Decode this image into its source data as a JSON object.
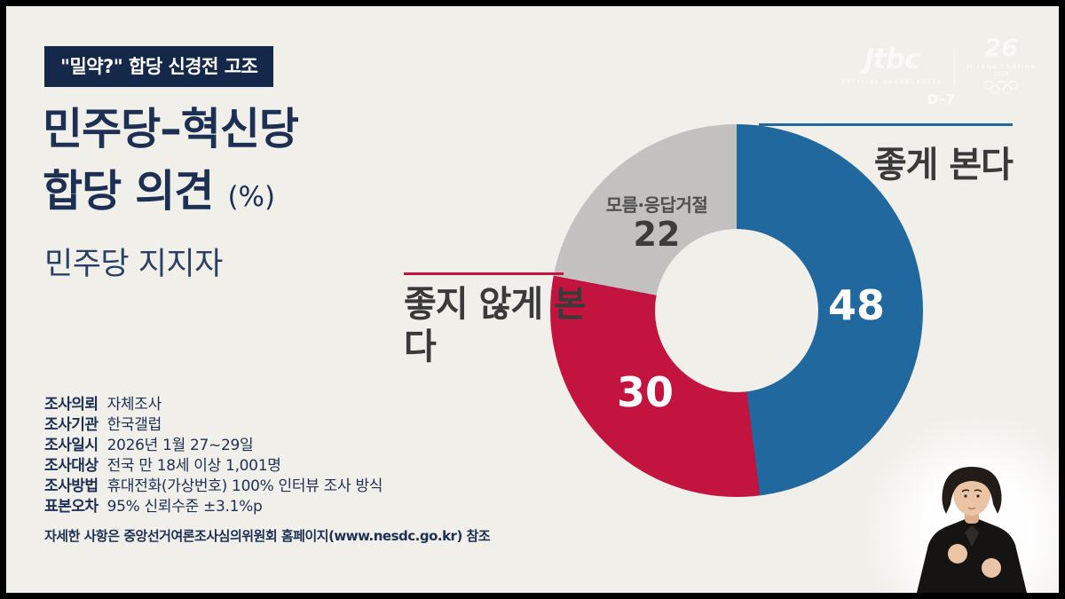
{
  "badge": {
    "label": "\"밀약?\" 합당 신경전 고조"
  },
  "title": {
    "line1": "민주당–혁신당",
    "line2": "합당 의견",
    "unit": "(%)"
  },
  "subtitle": "민주당 지지자",
  "chart_data": {
    "type": "pie",
    "donut": true,
    "title": "민주당–혁신당 합당 의견 (%)",
    "subtitle": "민주당 지지자",
    "unit": "%",
    "start_angle": "top",
    "direction": "clockwise",
    "legend_position": "direct-labels",
    "segments": [
      {
        "label": "좋게 본다",
        "value": 48,
        "color": "#20689e"
      },
      {
        "label": "좋지 않게 본다",
        "value": 30,
        "color": "#c31440"
      },
      {
        "label": "모름·응답거절",
        "value": 22,
        "color": "#c2c1bf"
      }
    ]
  },
  "survey": {
    "rows": [
      {
        "label": "조사의뢰",
        "value": "자체조사"
      },
      {
        "label": "조사기관",
        "value": "한국갤럽"
      },
      {
        "label": "조사일시",
        "value": "2026년 1월 27~29일"
      },
      {
        "label": "조사대상",
        "value": "전국 만 18세 이상 1,001명"
      },
      {
        "label": "조사방법",
        "value": "휴대전화(가상번호) 100% 인터뷰 조사 방식"
      },
      {
        "label": "표본오차",
        "value": "95% 신뢰수준 ±3.1%p"
      }
    ],
    "note": "자세한 사항은 중앙선거여론조사심의위원회 홈페이지(www.nesdc.go.kr) 참조"
  },
  "brand": {
    "network": "Jtbc",
    "tagline": "OFFICIAL BROADCASTER",
    "emblem": "26",
    "event": "MILANO CORTINA",
    "event_year": "2026",
    "countdown": "D-7"
  },
  "colors": {
    "bg": "#f1efe9",
    "navy": "#1d3054",
    "badge": "#16284a",
    "blue": "#20689e",
    "red": "#c31440",
    "gray": "#c2c1bf",
    "label": "#3a3a3a"
  }
}
